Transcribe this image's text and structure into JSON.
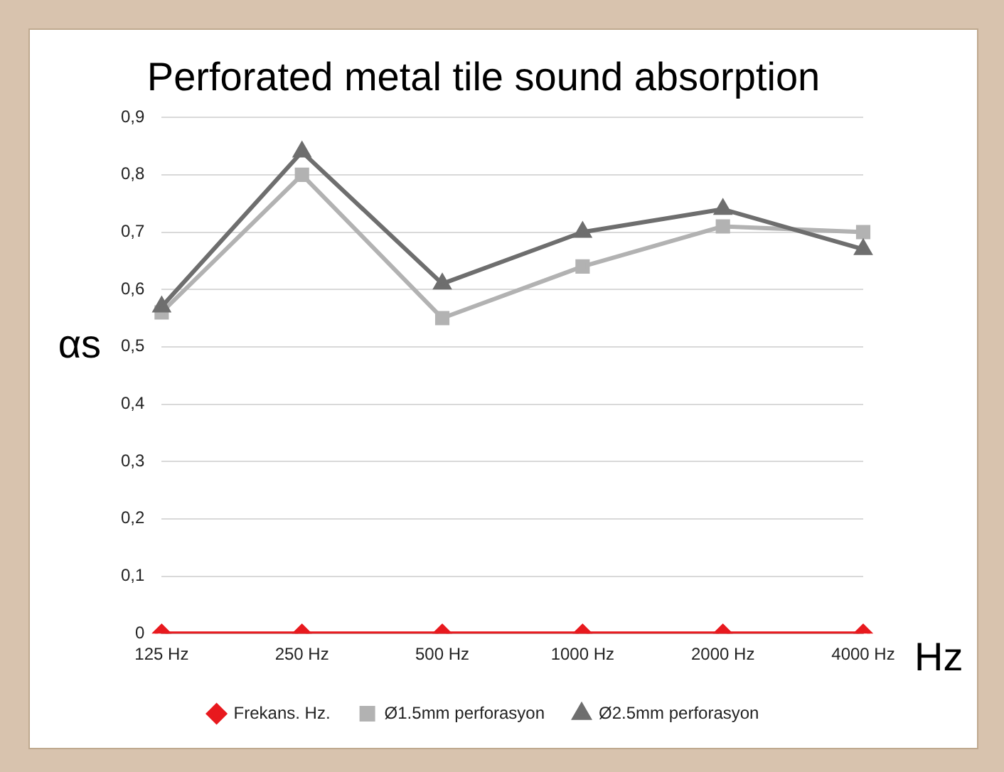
{
  "chart_data": {
    "type": "line",
    "title": "Perforated metal tile sound absorption",
    "xlabel": "Hz",
    "ylabel": "αs",
    "categories": [
      "125 Hz",
      "250 Hz",
      "500 Hz",
      "1000 Hz",
      "2000 Hz",
      "4000 Hz"
    ],
    "series": [
      {
        "name": "Frekans. Hz.",
        "color": "#e8191e",
        "marker": "diamond",
        "values": [
          0,
          0,
          0,
          0,
          0,
          0
        ]
      },
      {
        "name": "Ø1.5mm perforasyon",
        "color": "#b2b2b2",
        "marker": "square",
        "values": [
          0.56,
          0.8,
          0.55,
          0.64,
          0.71,
          0.7
        ]
      },
      {
        "name": "Ø2.5mm perforasyon",
        "color": "#6e6e6e",
        "marker": "triangle",
        "values": [
          0.57,
          0.84,
          0.61,
          0.7,
          0.74,
          0.67
        ]
      }
    ],
    "ylim": [
      0,
      0.9
    ],
    "yticks": [
      {
        "value": 0,
        "label": "0"
      },
      {
        "value": 0.1,
        "label": "0,1"
      },
      {
        "value": 0.2,
        "label": "0,2"
      },
      {
        "value": 0.3,
        "label": "0,3"
      },
      {
        "value": 0.4,
        "label": "0,4"
      },
      {
        "value": 0.5,
        "label": "0,5"
      },
      {
        "value": 0.6,
        "label": "0,6"
      },
      {
        "value": 0.7,
        "label": "0,7"
      },
      {
        "value": 0.8,
        "label": "0,8"
      },
      {
        "value": 0.9,
        "label": "0,9"
      }
    ],
    "grid": "y",
    "legend": "bottom",
    "line_style": "solid"
  }
}
